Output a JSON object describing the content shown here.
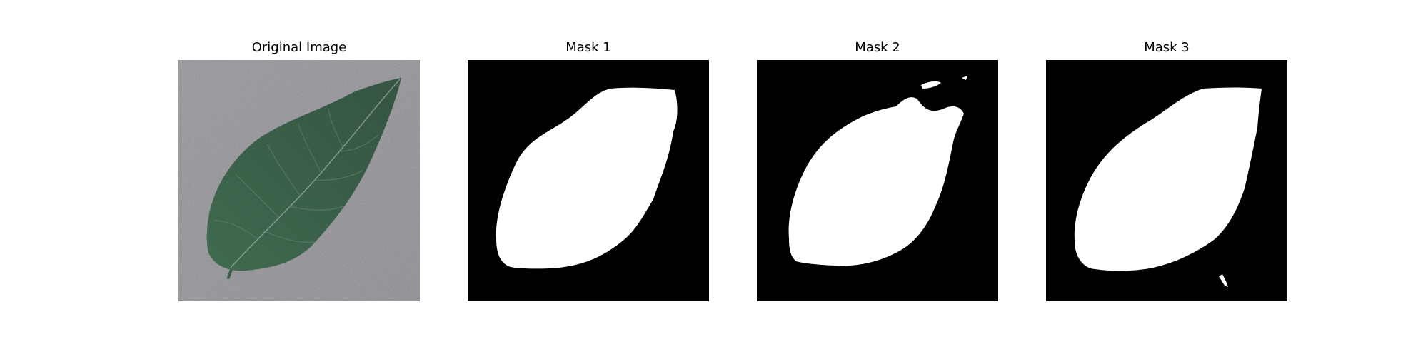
{
  "panels": [
    {
      "title": "Original Image"
    },
    {
      "title": "Mask 1"
    },
    {
      "title": "Mask 2"
    },
    {
      "title": "Mask 3"
    }
  ],
  "colors": {
    "background": "#ffffff",
    "mask_background": "#000000",
    "mask_foreground": "#ffffff",
    "leaf": "#3b5e48",
    "surface": "#8f8f94"
  }
}
